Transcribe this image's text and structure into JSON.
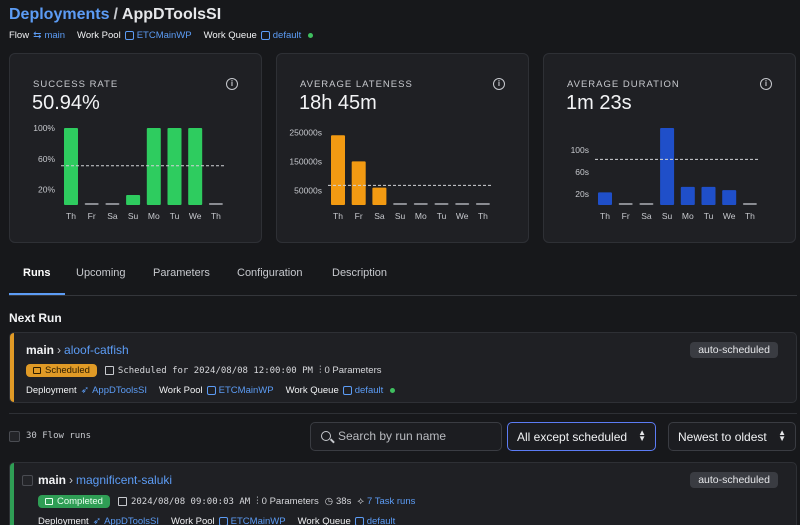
{
  "breadcrumb": {
    "root": "Deployments",
    "separator": "/",
    "current": "AppDToolsSI"
  },
  "meta": {
    "flow_label": "Flow",
    "flow_value": "main",
    "work_pool_label": "Work Pool",
    "work_pool_value": "ETCMainWP",
    "work_queue_label": "Work Queue",
    "work_queue_value": "default"
  },
  "stats": [
    {
      "label": "SUCCESS RATE",
      "value": "50.94%",
      "chart_data": {
        "type": "bar",
        "color": "#2ecc5f",
        "categories": [
          "Th",
          "Fr",
          "Sa",
          "Su",
          "Mo",
          "Tu",
          "We",
          "Th"
        ],
        "values": [
          100,
          0,
          0,
          13,
          100,
          100,
          100,
          0
        ],
        "ytick_labels": [
          "100%",
          "60%",
          "20%"
        ],
        "ytick_values": [
          100,
          60,
          20
        ],
        "ylim": [
          0,
          100
        ],
        "average_line": 51
      }
    },
    {
      "label": "AVERAGE LATENESS",
      "value": "18h 45m",
      "chart_data": {
        "type": "bar",
        "color": "#f29a12",
        "categories": [
          "Th",
          "Fr",
          "Sa",
          "Su",
          "Mo",
          "Tu",
          "We",
          "Th"
        ],
        "values": [
          240000,
          150000,
          60000,
          3000,
          3000,
          3000,
          3000,
          3000
        ],
        "ytick_labels": [
          "250000s",
          "150000s",
          "50000s"
        ],
        "ytick_values": [
          250000,
          150000,
          50000
        ],
        "ylim": [
          0,
          265000
        ],
        "average_line": 67500
      }
    },
    {
      "label": "AVERAGE DURATION",
      "value": "1m 23s",
      "chart_data": {
        "type": "bar",
        "color": "#1f4fc9",
        "categories": [
          "Th",
          "Fr",
          "Sa",
          "Su",
          "Mo",
          "Tu",
          "We",
          "Th"
        ],
        "values": [
          23,
          1,
          1,
          140,
          33,
          33,
          27,
          1
        ],
        "ytick_labels": [
          "100s",
          "60s",
          "20s"
        ],
        "ytick_values": [
          100,
          60,
          20
        ],
        "ylim": [
          0,
          140
        ],
        "average_line": 83
      }
    }
  ],
  "tabs": [
    {
      "label": "Runs",
      "active": true
    },
    {
      "label": "Upcoming"
    },
    {
      "label": "Parameters"
    },
    {
      "label": "Configuration"
    },
    {
      "label": "Description"
    }
  ],
  "next_run": {
    "section_title": "Next Run",
    "flow": "main",
    "name": "aloof-catfish",
    "badge": "auto-scheduled",
    "state": "Scheduled",
    "scheduled_text": "Scheduled for 2024/08/08 12:00:00 PM",
    "params": "0 Parameters",
    "deployment_label": "Deployment",
    "deployment_value": "AppDToolsSI",
    "work_pool_label": "Work Pool",
    "work_pool_value": "ETCMainWP",
    "work_queue_label": "Work Queue",
    "work_queue_value": "default"
  },
  "runs_toolbar": {
    "count": "30 Flow runs",
    "search_placeholder": "Search by run name",
    "filter": "All except scheduled",
    "sort": "Newest to oldest"
  },
  "runs": [
    {
      "flow": "main",
      "name": "magnificent-saluki",
      "badge": "auto-scheduled",
      "state": "Completed",
      "time": "2024/08/08 09:00:03 AM",
      "params": "0 Parameters",
      "duration": "38s",
      "tasks": "7 Task runs",
      "deployment_label": "Deployment",
      "deployment_value": "AppDToolsSI",
      "work_pool_label": "Work Pool",
      "work_pool_value": "ETCMainWP",
      "work_queue_label": "Work Queue",
      "work_queue_value": "default"
    }
  ],
  "colors": {
    "accent": "#5c9cf5",
    "scheduled": "#e09a26",
    "completed": "#2f9e55",
    "healthy": "#3fbf5f"
  }
}
